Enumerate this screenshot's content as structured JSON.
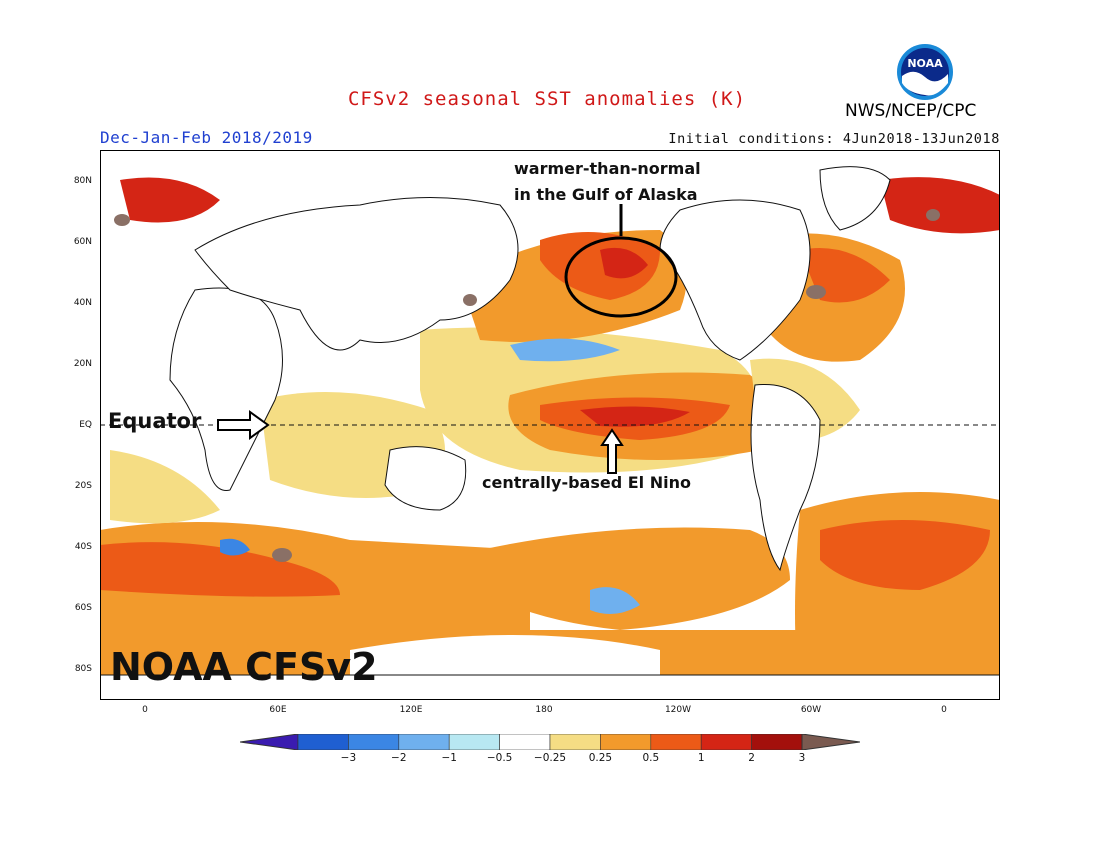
{
  "title": "CFSv2 seasonal SST anomalies (K)",
  "agency": "NWS/NCEP/CPC",
  "logo_text": "NOAA",
  "season": "Dec-Jan-Feb 2018/2019",
  "initial_conditions": "Initial conditions: 4Jun2018-13Jun2018",
  "lat_labels": [
    "80N",
    "60N",
    "40N",
    "20N",
    "EQ",
    "20S",
    "40S",
    "60S",
    "80S"
  ],
  "lon_labels": [
    "0",
    "60E",
    "120E",
    "180",
    "120W",
    "60W",
    "0"
  ],
  "annotations": {
    "gulf_line1": "warmer-than-normal",
    "gulf_line2": "in the Gulf of Alaska",
    "el_nino": "centrally-based El Nino",
    "equator": "Equator",
    "model": "NOAA CFSv2"
  },
  "colorbar": {
    "ticks": [
      "-3",
      "-2",
      "-1",
      "-0.5",
      "-0.25",
      "0.25",
      "0.5",
      "1",
      "2",
      "3"
    ],
    "colors": [
      "#3a1bb0",
      "#1f5fd1",
      "#3b86e4",
      "#6fb0ee",
      "#b8e8f2",
      "#ffffff",
      "#f5dd84",
      "#f29a2c",
      "#ec5a17",
      "#d42515",
      "#a3100c",
      "#7a5a50"
    ]
  }
}
